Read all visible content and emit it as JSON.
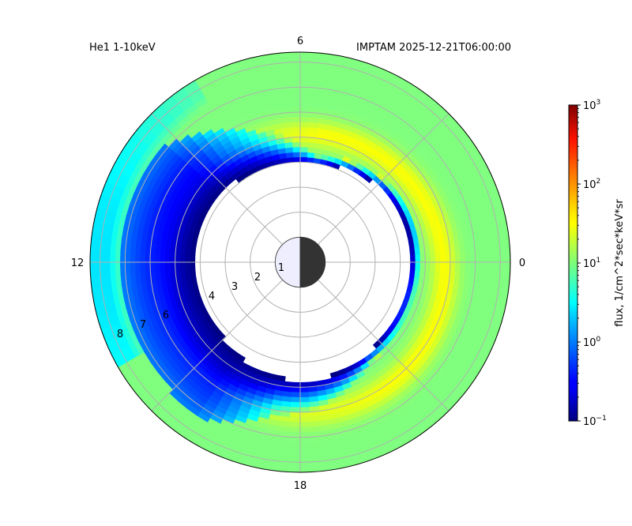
{
  "chart_data": {
    "type": "heatmap",
    "projection": "polar",
    "title_left": "He1 1-10keV",
    "title_right": "IMPTAM 2025-12-21T06:00:00",
    "angular_ticks": [
      {
        "label": "0",
        "mlt": 0
      },
      {
        "label": "6",
        "mlt": 6
      },
      {
        "label": "12",
        "mlt": 12
      },
      {
        "label": "18",
        "mlt": 18
      }
    ],
    "radial_ticks": [
      "1",
      "2",
      "3",
      "4",
      "6",
      "7",
      "8"
    ],
    "radial_tick_values": [
      1,
      2,
      3,
      4,
      6,
      7,
      8
    ],
    "r_range": [
      0,
      8.4
    ],
    "grid": true,
    "earth_marker": "day/night disk at center, night side toward MLT 0",
    "colorbar": {
      "label": "flux, 1/cm^2*sec*keV*sr",
      "scale": "log",
      "range": [
        0.1,
        1000
      ],
      "colormap": "jet",
      "ticks": [
        {
          "base": "10",
          "exp": "3",
          "value": 1000
        },
        {
          "base": "10",
          "exp": "2",
          "value": 100
        },
        {
          "base": "10",
          "exp": "1",
          "value": 10
        },
        {
          "base": "10",
          "exp": "0",
          "value": 1
        },
        {
          "base": "10",
          "exp": "−1",
          "value": 0.1
        }
      ]
    },
    "flux_model": {
      "background_flux": 10,
      "no_data_inner_boundary_re": [
        4.3,
        5.0
      ],
      "ring_peak_flux": 30,
      "ring_peak_radius_re": 6.2,
      "dusk_dawn_depletion_min_flux": 0.1
    }
  }
}
